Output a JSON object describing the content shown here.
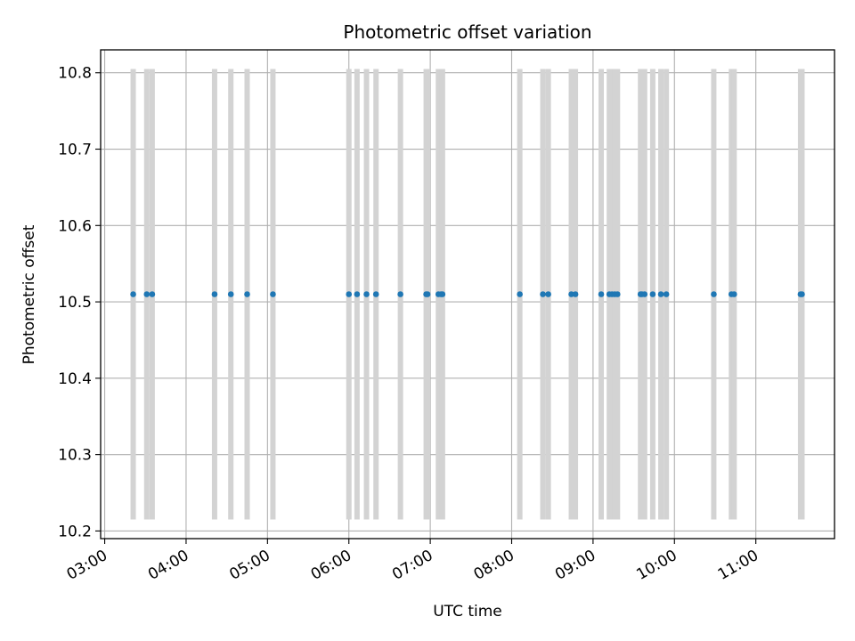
{
  "chart_data": {
    "type": "scatter",
    "title": "Photometric offset variation",
    "xlabel": "UTC time",
    "ylabel": "Photometric offset",
    "x_ticks": [
      "03:00",
      "04:00",
      "05:00",
      "06:00",
      "07:00",
      "08:00",
      "09:00",
      "10:00",
      "11:00"
    ],
    "y_ticks": [
      "10.2",
      "10.3",
      "10.4",
      "10.5",
      "10.6",
      "10.7",
      "10.8"
    ],
    "xlim": [
      "02:57",
      "11:58"
    ],
    "ylim": [
      10.19,
      10.83
    ],
    "grid": true,
    "error_bar_range": [
      10.215,
      10.805
    ],
    "colors": {
      "points": "#1f77b4",
      "error_bars": "#d3d3d3",
      "grid": "#b0b0b0"
    },
    "series": [
      {
        "x": [
          "03:21",
          "03:31",
          "03:35",
          "04:21",
          "04:33",
          "04:45",
          "05:04",
          "06:00",
          "06:06",
          "06:13",
          "06:20",
          "06:38",
          "06:57",
          "06:58",
          "07:06",
          "07:08",
          "07:09",
          "08:06",
          "08:23",
          "08:27",
          "08:44",
          "08:47",
          "09:06",
          "09:12",
          "09:14",
          "09:16",
          "09:18",
          "09:35",
          "09:36",
          "09:38",
          "09:44",
          "09:50",
          "09:54",
          "10:29",
          "10:42",
          "10:44",
          "11:33",
          "11:34"
        ],
        "y": [
          10.51,
          10.51,
          10.51,
          10.51,
          10.51,
          10.51,
          10.51,
          10.51,
          10.51,
          10.51,
          10.51,
          10.51,
          10.51,
          10.51,
          10.51,
          10.51,
          10.51,
          10.51,
          10.51,
          10.51,
          10.51,
          10.51,
          10.51,
          10.51,
          10.51,
          10.51,
          10.51,
          10.51,
          10.51,
          10.51,
          10.51,
          10.51,
          10.51,
          10.51,
          10.51,
          10.51,
          10.51,
          10.51
        ]
      }
    ]
  }
}
